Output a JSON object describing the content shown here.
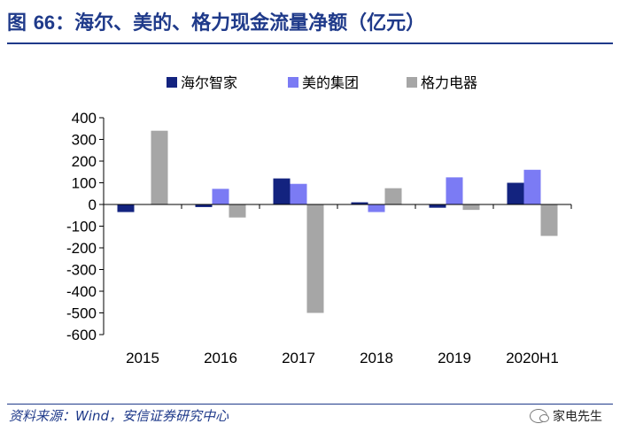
{
  "figure": {
    "title_prefix": "图",
    "title_number": "66",
    "title_text": "：海尔、美的、格力现金流量净额（亿元）",
    "source": "资料来源：Wind，安信证券研究中心",
    "watermark": "家电先生",
    "watermark_icon": "wechat-icon"
  },
  "chart_data": {
    "type": "bar",
    "title": "海尔、美的、格力现金流量净额（亿元）",
    "xlabel": "",
    "ylabel": "",
    "categories": [
      "2015",
      "2016",
      "2017",
      "2018",
      "2019",
      "2020H1"
    ],
    "ylim": [
      -600,
      400
    ],
    "yticks": [
      400,
      300,
      200,
      100,
      0,
      -100,
      -200,
      -300,
      -400,
      -500,
      -600
    ],
    "grid": false,
    "legend_position": "top",
    "series": [
      {
        "name": "海尔智家",
        "color": "#13237f",
        "values": [
          -35,
          -12,
          120,
          10,
          -15,
          100
        ]
      },
      {
        "name": "美的集团",
        "color": "#7b7bf4",
        "values": [
          0,
          72,
          95,
          -35,
          125,
          160
        ]
      },
      {
        "name": "格力电器",
        "color": "#a6a6a6",
        "values": [
          340,
          -60,
          -500,
          75,
          -25,
          -145
        ]
      }
    ]
  }
}
